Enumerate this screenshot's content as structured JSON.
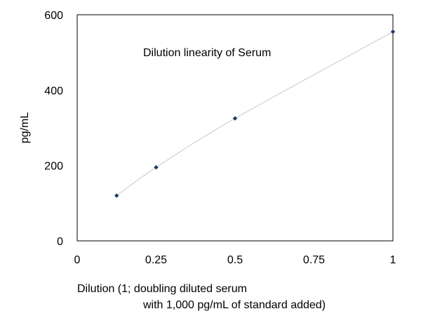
{
  "chart_data": {
    "type": "scatter",
    "title": "Dilution linearity of Serum",
    "xlabel": [
      "Dilution (1; doubling diluted serum",
      "with 1,000 pg/mL of standard added)"
    ],
    "ylabel": "pg/mL",
    "xlim": [
      0,
      1
    ],
    "ylim": [
      0,
      600
    ],
    "x_ticks": [
      0,
      0.25,
      0.5,
      0.75,
      1
    ],
    "x_tick_labels": [
      "0",
      "0.25",
      "0.5",
      "0.75",
      "1"
    ],
    "y_ticks": [
      0,
      200,
      400,
      600
    ],
    "y_tick_labels": [
      "0",
      "200",
      "400",
      "600"
    ],
    "grid": false,
    "legend": "none",
    "series": [
      {
        "x": [
          0.125,
          0.25,
          0.5,
          1
        ],
        "y": [
          120,
          195,
          325,
          555
        ],
        "marker": "diamond",
        "smooth_line": true
      }
    ],
    "colors": {
      "marker": "#1f3864",
      "line": "#c8c8c8",
      "axis": "#000000"
    }
  }
}
